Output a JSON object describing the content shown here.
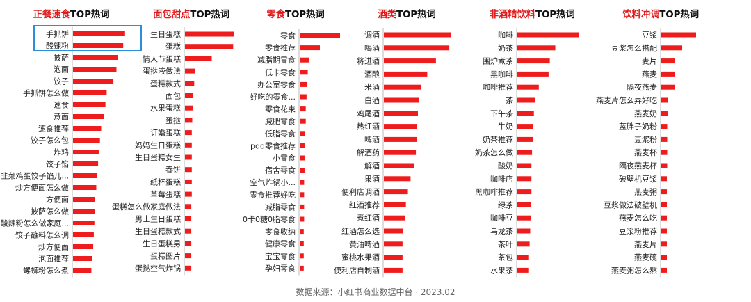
{
  "colors": {
    "bar": "#ee1c1c",
    "title_accent": "#e01a1a",
    "highlight": "#2a8fd8"
  },
  "charts": [
    {
      "title_red": "正餐速食",
      "title_black": "TOP热词",
      "chart_data": {
        "type": "bar",
        "orientation": "horizontal",
        "categories": [
          "手抓饼",
          "酸辣粉",
          "披萨",
          "泡面",
          "饺子",
          "手抓饼怎么做",
          "速食",
          "意面",
          "速食推荐",
          "饺子怎么包",
          "炸鸡",
          "饺子馅",
          "韭菜鸡蛋饺子馅儿...",
          "炒方便面怎么做",
          "方便面",
          "披萨怎么做",
          "酸辣粉怎么做家庭...",
          "饺子蘸料怎么调",
          "炒方便面",
          "泡面推荐",
          "螺蛳粉怎么煮"
        ],
        "values": [
          85,
          82,
          73,
          71,
          66,
          55,
          53,
          51,
          46,
          44,
          42,
          41,
          39,
          38,
          36,
          36,
          35,
          34,
          33,
          31,
          30
        ],
        "xlim": [
          0,
          100
        ],
        "highlighted_categories": [
          "手抓饼",
          "酸辣粉"
        ]
      }
    },
    {
      "title_red": "面包甜点",
      "title_black": "TOP热词",
      "chart_data": {
        "type": "bar",
        "orientation": "horizontal",
        "categories": [
          "生日蛋糕",
          "蛋糕",
          "情人节蛋糕",
          "蛋挞液做法",
          "蛋糕款式",
          "面包",
          "水果蛋糕",
          "蛋挞",
          "订婚蛋糕",
          "妈妈生日蛋糕",
          "生日蛋糕女生",
          "春饼",
          "纸杯蛋糕",
          "草莓蛋糕",
          "蛋糕怎么做家庭做法",
          "男士生日蛋糕",
          "生日蛋糕款式",
          "生日蛋糕男",
          "蛋糕图片",
          "蛋挞空气炸锅"
        ],
        "values": [
          100,
          99,
          55,
          21,
          19,
          17,
          16,
          15,
          14,
          14,
          14,
          14,
          14,
          14,
          13,
          13,
          13,
          13,
          13,
          13
        ],
        "xlim": [
          0,
          100
        ]
      }
    },
    {
      "title_red": "零食",
      "title_black": "TOP热词",
      "chart_data": {
        "type": "bar",
        "orientation": "horizontal",
        "categories": [
          "零食",
          "零食推荐",
          "减脂期零食",
          "低卡零食",
          "办公室零食",
          "好吃的零食...",
          "零食花束",
          "减肥零食",
          "低脂零食",
          "pdd零食推荐",
          "小零食",
          "宿舍零食",
          "空气炸锅小...",
          "零食推荐好吃",
          "减脂零食",
          "0卡0糖0脂零食",
          "零食收纳",
          "健康零食",
          "宝宝零食",
          "孕妇零食"
        ],
        "values": [
          100,
          50,
          24,
          20,
          19,
          17,
          15,
          15,
          13,
          12,
          12,
          12,
          11,
          11,
          11,
          11,
          10,
          10,
          10,
          10
        ],
        "xlim": [
          0,
          100
        ]
      }
    },
    {
      "title_red": "酒类",
      "title_black": "TOP热词",
      "chart_data": {
        "type": "bar",
        "orientation": "horizontal",
        "categories": [
          "调酒",
          "喝酒",
          "将进酒",
          "酒酿",
          "米酒",
          "白酒",
          "鸡尾酒",
          "热红酒",
          "啤酒",
          "解酒药",
          "解酒",
          "果酒",
          "便利店调酒",
          "红酒推荐",
          "煮红酒",
          "红酒怎么选",
          "黄油啤酒",
          "蜜桃水果酒",
          "便利店自制酒"
        ],
        "values": [
          100,
          98,
          78,
          65,
          56,
          53,
          51,
          50,
          49,
          48,
          45,
          40,
          36,
          33,
          32,
          29,
          28,
          28,
          28
        ],
        "xlim": [
          0,
          100
        ]
      }
    },
    {
      "title_red": "非酒精饮料",
      "title_black": "TOP热词",
      "chart_data": {
        "type": "bar",
        "orientation": "horizontal",
        "categories": [
          "咖啡",
          "奶茶",
          "围炉煮茶",
          "黑咖啡",
          "咖啡推荐",
          "茶",
          "下午茶",
          "牛奶",
          "奶茶推荐",
          "奶茶怎么做",
          "酸奶",
          "咖啡店",
          "黑咖啡推荐",
          "绿茶",
          "咖啡豆",
          "乌龙茶",
          "茶叶",
          "茶包",
          "水果茶"
        ],
        "values": [
          100,
          62,
          53,
          51,
          35,
          29,
          27,
          26,
          26,
          24,
          23,
          23,
          23,
          22,
          22,
          21,
          20,
          19,
          19
        ],
        "xlim": [
          0,
          100
        ]
      }
    },
    {
      "title_red": "饮料冲调",
      "title_black": "TOP热词",
      "chart_data": {
        "type": "bar",
        "orientation": "horizontal",
        "categories": [
          "豆浆",
          "豆浆怎么搭配",
          "麦片",
          "燕麦",
          "隔夜燕麦",
          "燕麦片怎么弄好吃",
          "燕麦奶",
          "蓝胖子奶粉",
          "豆浆粉",
          "燕麦杯",
          "隔夜燕麦杯",
          "破壁机豆浆",
          "燕麦粥",
          "豆浆做法破壁机",
          "燕麦怎么吃",
          "豆浆粉推荐",
          "燕麦片",
          "燕麦碗",
          "燕麦粥怎么熬"
        ],
        "values": [
          100,
          60,
          39,
          39,
          39,
          20,
          18,
          17,
          17,
          17,
          17,
          16,
          16,
          16,
          16,
          16,
          16,
          16,
          16
        ],
        "xlim": [
          0,
          100
        ]
      }
    }
  ],
  "footer": "数据来源：小红书商业数据中台 · 2023.02"
}
